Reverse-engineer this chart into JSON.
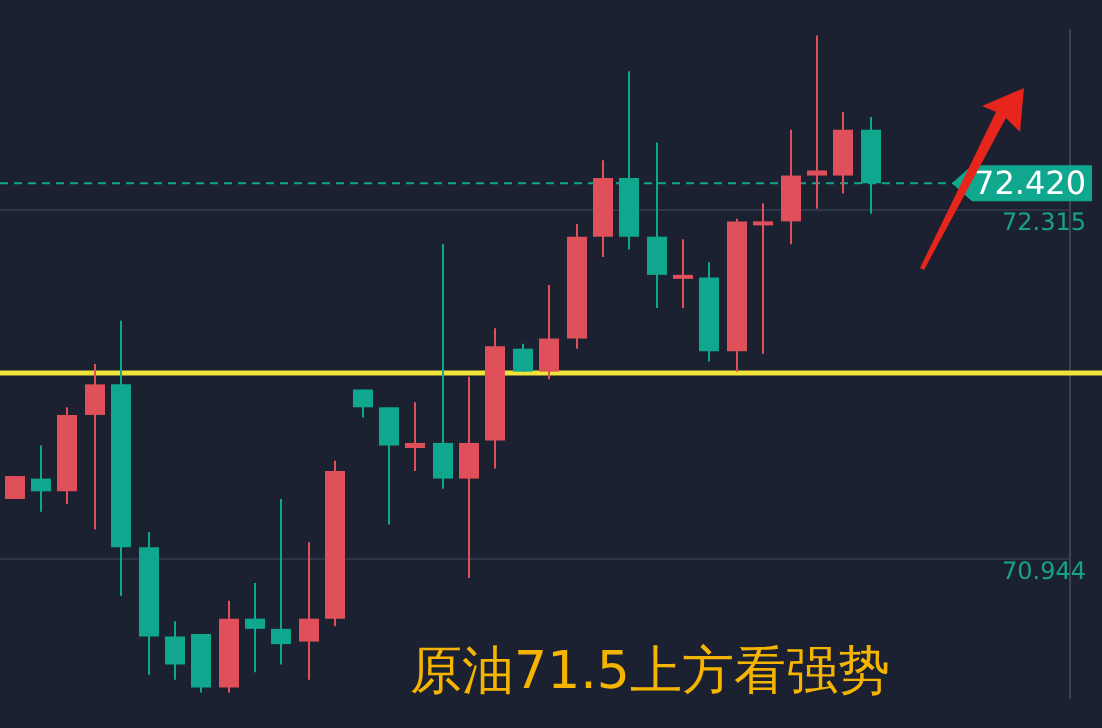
{
  "chart_data": {
    "type": "candlestick",
    "title": "原油71.5上方看强势",
    "categories": [
      null,
      null,
      null,
      null,
      null,
      null,
      null,
      null,
      null,
      null,
      null,
      null,
      null,
      null,
      null,
      null,
      null,
      null,
      null,
      null,
      null,
      null,
      null,
      null,
      null,
      null,
      null,
      null,
      null,
      null,
      null,
      null,
      null,
      null,
      null,
      null,
      null,
      null,
      null,
      null
    ],
    "ohlc": [
      [
        71.18,
        71.27,
        71.18,
        71.27
      ],
      [
        71.26,
        71.39,
        71.13,
        71.21
      ],
      [
        71.21,
        71.54,
        71.16,
        71.51
      ],
      [
        71.51,
        71.71,
        71.06,
        71.63
      ],
      [
        71.63,
        71.88,
        70.8,
        70.99
      ],
      [
        70.99,
        71.05,
        70.49,
        70.64
      ],
      [
        70.64,
        70.7,
        70.47,
        70.53
      ],
      [
        70.65,
        70.65,
        70.42,
        70.44
      ],
      [
        70.44,
        70.78,
        70.42,
        70.71
      ],
      [
        70.71,
        70.85,
        70.5,
        70.67
      ],
      [
        70.67,
        71.18,
        70.53,
        70.61
      ],
      [
        70.62,
        71.01,
        70.47,
        70.71
      ],
      [
        70.71,
        71.33,
        70.68,
        71.29
      ],
      [
        71.61,
        71.61,
        71.5,
        71.54
      ],
      [
        71.54,
        71.54,
        71.08,
        71.39
      ],
      [
        71.38,
        71.56,
        71.29,
        71.4
      ],
      [
        71.4,
        72.18,
        71.22,
        71.26
      ],
      [
        71.26,
        71.66,
        70.87,
        71.4
      ],
      [
        71.41,
        71.85,
        71.3,
        71.78
      ],
      [
        71.77,
        71.79,
        71.68,
        71.68
      ],
      [
        71.68,
        72.02,
        71.65,
        71.81
      ],
      [
        71.81,
        72.26,
        71.77,
        72.21
      ],
      [
        72.21,
        72.51,
        72.13,
        72.44
      ],
      [
        72.44,
        72.86,
        72.16,
        72.21
      ],
      [
        72.21,
        72.58,
        71.93,
        72.06
      ],
      [
        72.05,
        72.2,
        71.93,
        72.06
      ],
      [
        72.05,
        72.11,
        71.72,
        71.76
      ],
      [
        71.76,
        72.28,
        71.68,
        72.27
      ],
      [
        72.26,
        72.34,
        71.75,
        72.27
      ],
      [
        72.27,
        72.63,
        72.18,
        72.45
      ],
      [
        72.45,
        73.0,
        72.32,
        72.47
      ],
      [
        72.45,
        72.7,
        72.38,
        72.63
      ],
      [
        72.63,
        72.68,
        72.3,
        72.42
      ],
      null,
      null,
      null,
      null,
      null,
      null,
      null
    ],
    "colors": [
      "#e0505a",
      "#0fa88e",
      "#e0505a",
      "#e0505a",
      "#0fa88e",
      "#0fa88e",
      "#0fa88e",
      "#0fa88e",
      "#e0505a",
      "#0fa88e",
      "#0fa88e",
      "#e0505a",
      "#e0505a",
      "#0fa88e",
      "#0fa88e",
      "#e0505a",
      "#0fa88e",
      "#e0505a",
      "#e0505a",
      "#0fa88e",
      "#e0505a",
      "#e0505a",
      "#e0505a",
      "#0fa88e",
      "#0fa88e",
      "#e0505a",
      "#0fa88e",
      "#e0505a",
      "#e0505a",
      "#e0505a",
      "#e0505a",
      "#e0505a",
      "#0fa88e",
      null,
      null,
      null,
      null,
      null,
      null,
      null
    ],
    "ylim": [
      70.4,
      73.02
    ],
    "yticks": [
      70.944,
      72.315
    ],
    "grid": "y",
    "tick_labels": "y",
    "ref_lines": [
      {
        "axis": "y",
        "value": 71.675,
        "color": "#f2e33a",
        "line_style": "solid"
      },
      {
        "axis": "y",
        "value": 72.42,
        "label": "72.420",
        "color": "#0fa88e",
        "line_style": "dashed"
      }
    ]
  }
}
